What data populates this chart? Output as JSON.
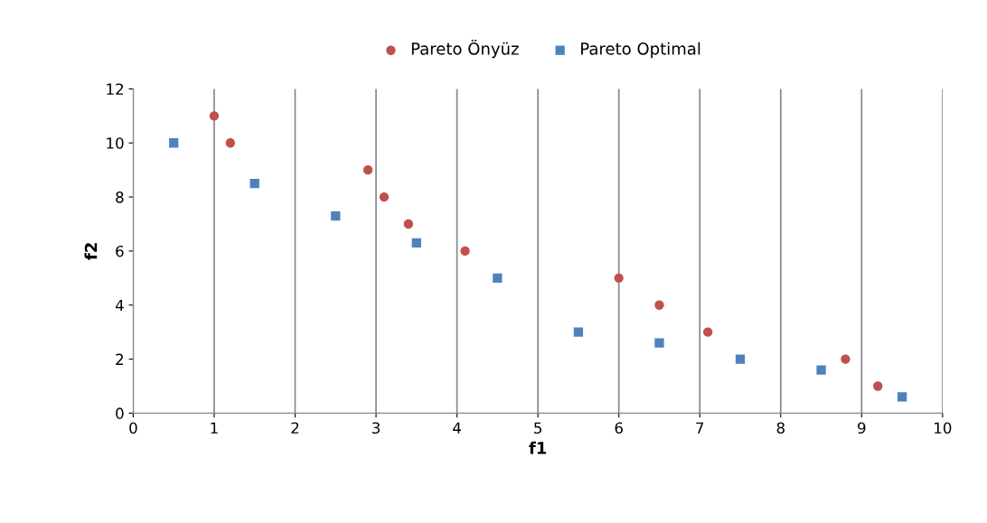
{
  "chart_data": {
    "type": "scatter",
    "xlabel": "f1",
    "ylabel": "f2",
    "series": [
      {
        "name": "Pareto Önyüz",
        "color": "#c0504d",
        "marker": "circle",
        "x": [
          1.0,
          1.2,
          2.9,
          3.1,
          3.4,
          4.1,
          6.0,
          6.5,
          7.1,
          8.8,
          9.2
        ],
        "values": [
          11,
          10,
          9,
          8,
          7,
          6,
          5,
          4,
          3,
          2,
          1
        ]
      },
      {
        "name": "Pareto Optimal",
        "color": "#4f81bd",
        "marker": "square",
        "x": [
          0.5,
          1.5,
          2.5,
          3.5,
          4.5,
          5.5,
          6.5,
          7.5,
          8.5,
          9.5
        ],
        "values": [
          10,
          8.5,
          7.3,
          6.3,
          5,
          3,
          2.6,
          2.0,
          1.6,
          0.6
        ]
      }
    ],
    "xlim": [
      0,
      10
    ],
    "xticks": [
      0,
      1,
      2,
      3,
      4,
      5,
      6,
      7,
      8,
      9,
      10
    ],
    "ylim": [
      0,
      12
    ],
    "yticks": [
      0,
      2,
      4,
      6,
      8,
      10,
      12
    ],
    "grid": "x",
    "legend": "top"
  }
}
